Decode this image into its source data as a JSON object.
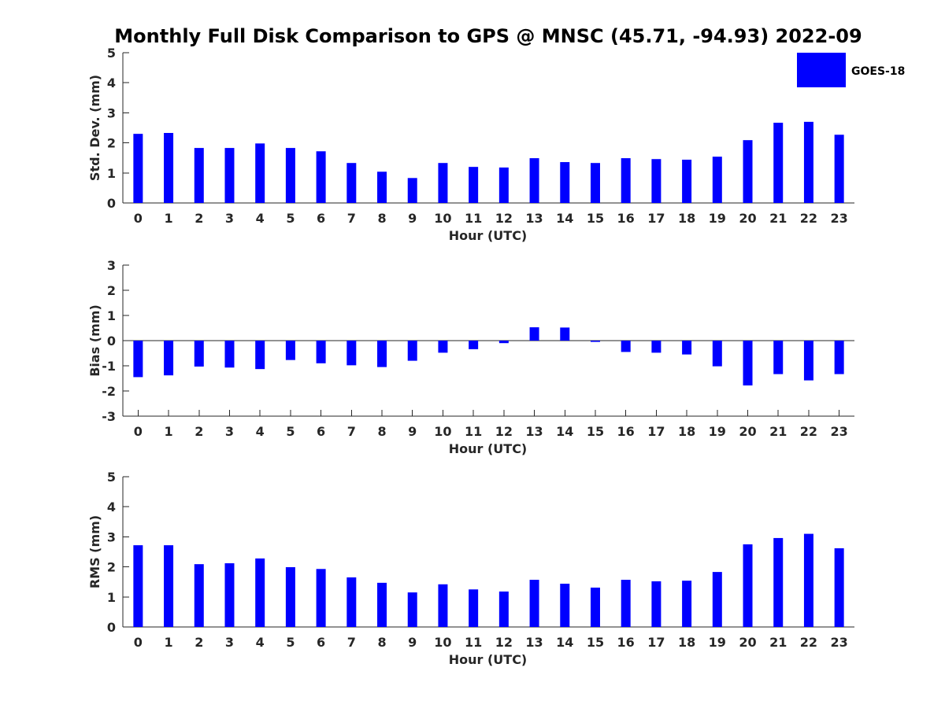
{
  "chart_data": {
    "title": "Monthly Full Disk Comparison to GPS @ MNSC (45.71, -94.93) 2022-09",
    "legend": [
      {
        "label": "GOES-18",
        "color": "#0000ff"
      }
    ],
    "panels": [
      {
        "type": "bar",
        "name": "stddev",
        "ylabel": "Std. Dev. (mm)",
        "xlabel": "Hour (UTC)",
        "ylim": [
          0,
          5
        ],
        "yticks": [
          "0",
          "1",
          "2",
          "3",
          "4",
          "5"
        ],
        "categories": [
          "0",
          "1",
          "2",
          "3",
          "4",
          "5",
          "6",
          "7",
          "8",
          "9",
          "10",
          "11",
          "12",
          "13",
          "14",
          "15",
          "16",
          "17",
          "18",
          "19",
          "20",
          "21",
          "22",
          "23"
        ],
        "series": [
          {
            "name": "GOES-18",
            "values": [
              2.3,
              2.33,
              1.83,
              1.83,
              1.98,
              1.83,
              1.72,
              1.33,
              1.04,
              0.83,
              1.33,
              1.2,
              1.18,
              1.49,
              1.36,
              1.33,
              1.49,
              1.46,
              1.44,
              1.54,
              2.09,
              2.67,
              2.7,
              2.27
            ]
          }
        ],
        "zero_line": false
      },
      {
        "type": "bar",
        "name": "bias",
        "ylabel": "Bias (mm)",
        "xlabel": "Hour (UTC)",
        "ylim": [
          -3,
          3
        ],
        "yticks": [
          "-3",
          "-2",
          "-1",
          "0",
          "1",
          "2",
          "3"
        ],
        "categories": [
          "0",
          "1",
          "2",
          "3",
          "4",
          "5",
          "6",
          "7",
          "8",
          "9",
          "10",
          "11",
          "12",
          "13",
          "14",
          "15",
          "16",
          "17",
          "18",
          "19",
          "20",
          "21",
          "22",
          "23"
        ],
        "series": [
          {
            "name": "GOES-18",
            "values": [
              -1.45,
              -1.38,
              -1.03,
              -1.07,
              -1.13,
              -0.77,
              -0.9,
              -0.98,
              -1.05,
              -0.8,
              -0.48,
              -0.34,
              -0.1,
              0.53,
              0.52,
              -0.05,
              -0.45,
              -0.48,
              -0.55,
              -1.02,
              -1.78,
              -1.33,
              -1.58,
              -1.33
            ]
          }
        ],
        "zero_line": true
      },
      {
        "type": "bar",
        "name": "rms",
        "ylabel": "RMS (mm)",
        "xlabel": "Hour (UTC)",
        "ylim": [
          0,
          5
        ],
        "yticks": [
          "0",
          "1",
          "2",
          "3",
          "4",
          "5"
        ],
        "categories": [
          "0",
          "1",
          "2",
          "3",
          "4",
          "5",
          "6",
          "7",
          "8",
          "9",
          "10",
          "11",
          "12",
          "13",
          "14",
          "15",
          "16",
          "17",
          "18",
          "19",
          "20",
          "21",
          "22",
          "23"
        ],
        "series": [
          {
            "name": "GOES-18",
            "values": [
              2.72,
              2.72,
              2.09,
              2.12,
              2.28,
              1.99,
              1.93,
              1.65,
              1.47,
              1.15,
              1.42,
              1.25,
              1.18,
              1.57,
              1.44,
              1.31,
              1.57,
              1.52,
              1.54,
              1.83,
              2.75,
              2.96,
              3.1,
              2.62
            ]
          }
        ],
        "zero_line": false
      }
    ]
  }
}
